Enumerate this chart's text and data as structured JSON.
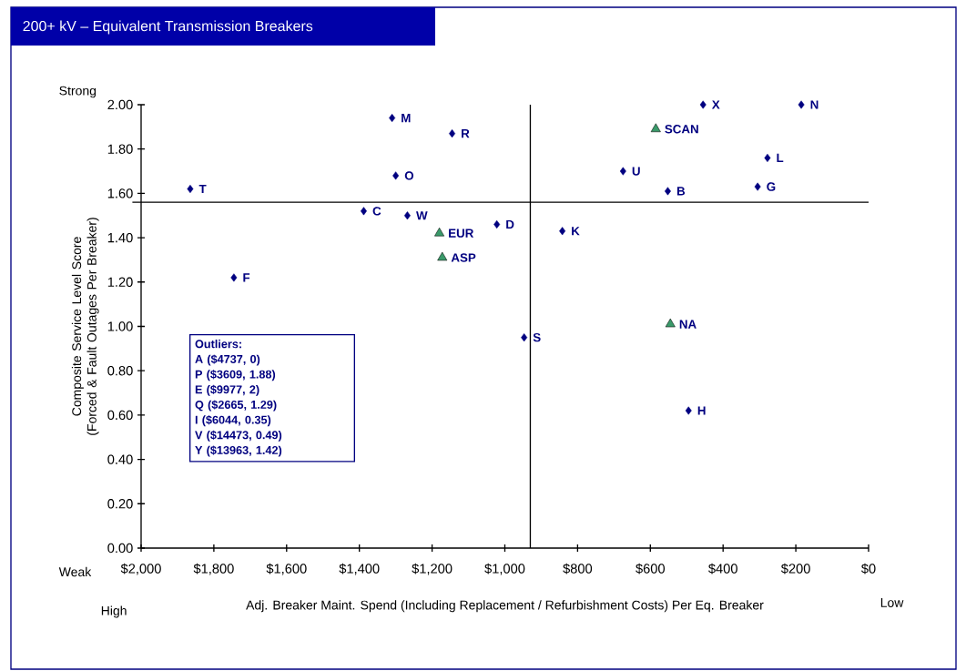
{
  "chart_data": {
    "type": "scatter",
    "title": "200+ kV – Equivalent Transmission Breakers",
    "xlabel": "Adj. Breaker Maint. Spend (Including Replacement / Refurbishment Costs) Per Eq. Breaker",
    "ylabel": "Composite Service Level Score (Forced & Fault Outages Per Breaker)",
    "xlim": [
      2000,
      0
    ],
    "xticks": [
      {
        "value": 2000,
        "label": "$2,000"
      },
      {
        "value": 1800,
        "label": "$1,800"
      },
      {
        "value": 1600,
        "label": "$1,600"
      },
      {
        "value": 1400,
        "label": "$1,400"
      },
      {
        "value": 1200,
        "label": "$1,200"
      },
      {
        "value": 1000,
        "label": "$1,000"
      },
      {
        "value": 800,
        "label": "$800"
      },
      {
        "value": 600,
        "label": "$600"
      },
      {
        "value": 400,
        "label": "$400"
      },
      {
        "value": 200,
        "label": "$200"
      },
      {
        "value": 0,
        "label": "$0"
      }
    ],
    "ylim": [
      0,
      2
    ],
    "yticks": [
      {
        "value": 0,
        "label": "0.00"
      },
      {
        "value": 0.2,
        "label": "0.20"
      },
      {
        "value": 0.4,
        "label": "0.40"
      },
      {
        "value": 0.6,
        "label": "0.60"
      },
      {
        "value": 0.8,
        "label": "0.80"
      },
      {
        "value": 1,
        "label": "1.00"
      },
      {
        "value": 1.2,
        "label": "1.20"
      },
      {
        "value": 1.4,
        "label": "1.40"
      },
      {
        "value": 1.6,
        "label": "1.60"
      },
      {
        "value": 1.8,
        "label": "1.80"
      },
      {
        "value": 2,
        "label": "2.00"
      }
    ],
    "series": [
      {
        "color": "#000080",
        "marker": "diamond",
        "x": [
          1865,
          1745,
          1388,
          1310,
          1300,
          1268,
          1145,
          1022,
          842,
          675,
          552,
          455,
          185,
          278,
          305,
          947,
          495
        ],
        "values": [
          1.62,
          1.22,
          1.52,
          1.94,
          1.68,
          1.5,
          1.87,
          1.46,
          1.43,
          1.7,
          1.61,
          2.0,
          2.0,
          1.76,
          1.63,
          0.95,
          0.62
        ]
      },
      {
        "color": "#3a9a6a",
        "marker": "triangle",
        "x": [
          1180,
          1172,
          585,
          545
        ],
        "values": [
          1.42,
          1.31,
          1.89,
          1.01
        ]
      }
    ],
    "ref_lines": [
      {
        "axis": "x",
        "value": 930
      },
      {
        "axis": "y",
        "value": 1.56
      }
    ],
    "grid": false,
    "annotations": [
      "Strong",
      "Weak",
      "High",
      "Low",
      "Outliers:",
      "A ($4737, 0)",
      "P ($3609, 1.88)",
      "E ($9977, 2)",
      "Q ($2665, 1.29)",
      "I ($6044, 0.35)",
      "V ($14473, 0.49)",
      "Y ($13963, 1.42)",
      {
        "text": "T",
        "x": 1865,
        "y": 1.62
      },
      {
        "text": "F",
        "x": 1745,
        "y": 1.22
      },
      {
        "text": "C",
        "x": 1388,
        "y": 1.52
      },
      {
        "text": "M",
        "x": 1310,
        "y": 1.94
      },
      {
        "text": "O",
        "x": 1300,
        "y": 1.68
      },
      {
        "text": "W",
        "x": 1268,
        "y": 1.5
      },
      {
        "text": "R",
        "x": 1145,
        "y": 1.87
      },
      {
        "text": "D",
        "x": 1022,
        "y": 1.46
      },
      {
        "text": "K",
        "x": 842,
        "y": 1.43
      },
      {
        "text": "U",
        "x": 675,
        "y": 1.7
      },
      {
        "text": "B",
        "x": 552,
        "y": 1.61
      },
      {
        "text": "X",
        "x": 455,
        "y": 2.0
      },
      {
        "text": "N",
        "x": 185,
        "y": 2.0
      },
      {
        "text": "L",
        "x": 278,
        "y": 1.76
      },
      {
        "text": "G",
        "x": 305,
        "y": 1.63
      },
      {
        "text": "S",
        "x": 947,
        "y": 0.95
      },
      {
        "text": "H",
        "x": 495,
        "y": 0.62
      },
      {
        "text": "EUR",
        "x": 1180,
        "y": 1.42
      },
      {
        "text": "ASP",
        "x": 1172,
        "y": 1.31
      },
      {
        "text": "SCAN",
        "x": 585,
        "y": 1.89
      },
      {
        "text": "NA",
        "x": 545,
        "y": 1.01
      }
    ]
  }
}
